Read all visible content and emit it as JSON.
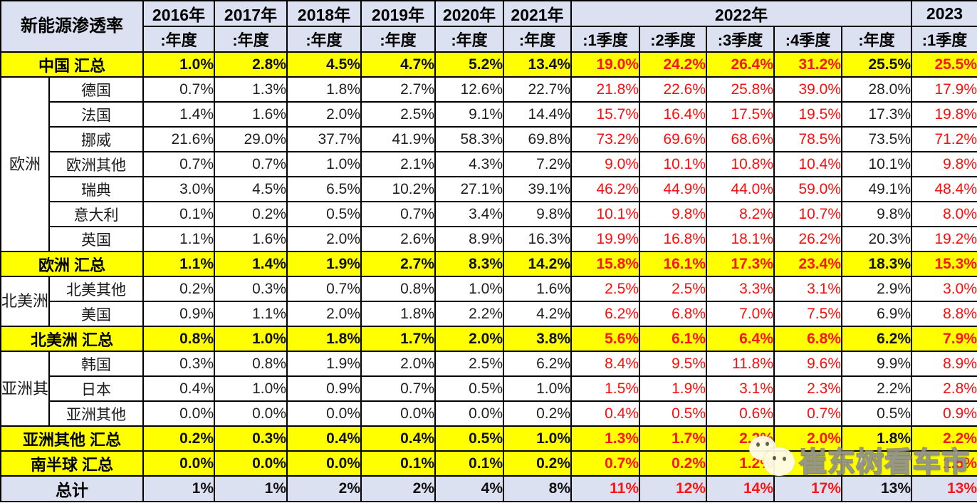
{
  "chart_data": {
    "type": "table",
    "title": "新能源渗透率",
    "year_headers": [
      {
        "label": "2016年",
        "span": 1
      },
      {
        "label": "2017年",
        "span": 1
      },
      {
        "label": "2018年",
        "span": 1
      },
      {
        "label": "2019年",
        "span": 1
      },
      {
        "label": "2020年",
        "span": 1
      },
      {
        "label": "2021年",
        "span": 1
      },
      {
        "label": "2022年",
        "span": 5
      },
      {
        "label": "2023",
        "span": 1
      }
    ],
    "period_headers": [
      ":年度",
      ":年度",
      ":年度",
      ":年度",
      ":年度",
      ":年度",
      ":1季度",
      ":2季度",
      ":3季度",
      ":4季度",
      ":年度",
      ":1季度"
    ],
    "red_columns": [
      6,
      7,
      8,
      9,
      11
    ],
    "sections": [
      {
        "type": "summary",
        "label": "中国 汇总",
        "values": [
          "1.0%",
          "2.8%",
          "4.5%",
          "4.7%",
          "5.2%",
          "13.4%",
          "19.0%",
          "24.2%",
          "26.4%",
          "31.2%",
          "25.5%",
          "25.5%"
        ]
      },
      {
        "type": "group",
        "group_label": "欧洲",
        "rows": [
          {
            "label": "德国",
            "values": [
              "0.7%",
              "1.3%",
              "1.8%",
              "2.7%",
              "12.6%",
              "22.7%",
              "21.8%",
              "22.6%",
              "25.8%",
              "39.0%",
              "28.0%",
              "17.9%"
            ]
          },
          {
            "label": "法国",
            "values": [
              "1.4%",
              "1.6%",
              "2.0%",
              "2.5%",
              "9.1%",
              "14.4%",
              "15.7%",
              "16.4%",
              "17.5%",
              "19.5%",
              "17.3%",
              "19.8%"
            ]
          },
          {
            "label": "挪威",
            "values": [
              "21.6%",
              "29.0%",
              "37.7%",
              "41.9%",
              "58.3%",
              "69.8%",
              "73.2%",
              "69.6%",
              "68.6%",
              "78.5%",
              "73.5%",
              "71.2%"
            ]
          },
          {
            "label": "欧洲其他",
            "values": [
              "0.7%",
              "0.7%",
              "1.0%",
              "2.1%",
              "4.3%",
              "7.2%",
              "9.0%",
              "10.1%",
              "10.8%",
              "10.4%",
              "10.1%",
              "9.8%"
            ]
          },
          {
            "label": "瑞典",
            "values": [
              "3.0%",
              "4.5%",
              "6.5%",
              "10.2%",
              "27.1%",
              "39.1%",
              "46.2%",
              "44.9%",
              "44.0%",
              "59.0%",
              "49.1%",
              "48.4%"
            ]
          },
          {
            "label": "意大利",
            "values": [
              "0.1%",
              "0.2%",
              "0.5%",
              "0.7%",
              "3.4%",
              "9.8%",
              "10.1%",
              "9.8%",
              "8.2%",
              "10.7%",
              "9.8%",
              "8.0%"
            ]
          },
          {
            "label": "英国",
            "values": [
              "1.1%",
              "1.6%",
              "2.0%",
              "2.6%",
              "8.9%",
              "16.3%",
              "19.9%",
              "16.8%",
              "18.1%",
              "26.2%",
              "20.3%",
              "19.2%"
            ]
          }
        ]
      },
      {
        "type": "summary",
        "label": "欧洲 汇总",
        "values": [
          "1.1%",
          "1.4%",
          "1.9%",
          "2.7%",
          "8.3%",
          "14.2%",
          "15.8%",
          "16.1%",
          "17.3%",
          "23.4%",
          "18.3%",
          "15.3%"
        ]
      },
      {
        "type": "group",
        "group_label": "北美洲",
        "rows": [
          {
            "label": "北美其他",
            "values": [
              "0.2%",
              "0.3%",
              "0.7%",
              "0.8%",
              "1.0%",
              "1.6%",
              "2.5%",
              "2.5%",
              "3.3%",
              "3.1%",
              "2.9%",
              "3.0%"
            ]
          },
          {
            "label": "美国",
            "values": [
              "0.9%",
              "1.1%",
              "2.0%",
              "1.8%",
              "2.2%",
              "4.2%",
              "6.2%",
              "6.8%",
              "7.0%",
              "7.5%",
              "6.9%",
              "8.8%"
            ]
          }
        ]
      },
      {
        "type": "summary",
        "label": "北美洲 汇总",
        "values": [
          "0.8%",
          "1.0%",
          "1.8%",
          "1.7%",
          "2.0%",
          "3.8%",
          "5.6%",
          "6.1%",
          "6.4%",
          "6.8%",
          "6.2%",
          "7.9%"
        ]
      },
      {
        "type": "group",
        "group_label": "亚洲其他",
        "rows": [
          {
            "label": "韩国",
            "values": [
              "0.3%",
              "0.8%",
              "1.9%",
              "2.0%",
              "2.5%",
              "6.2%",
              "8.4%",
              "9.5%",
              "11.8%",
              "9.6%",
              "9.9%",
              "8.9%"
            ]
          },
          {
            "label": "日本",
            "values": [
              "0.4%",
              "1.0%",
              "0.9%",
              "0.7%",
              "0.5%",
              "1.0%",
              "1.5%",
              "1.9%",
              "3.1%",
              "2.3%",
              "2.2%",
              "2.8%"
            ]
          },
          {
            "label": "亚洲其他",
            "values": [
              "0.0%",
              "0.0%",
              "0.0%",
              "0.0%",
              "0.0%",
              "0.2%",
              "0.4%",
              "0.5%",
              "0.6%",
              "0.7%",
              "0.5%",
              "0.9%"
            ]
          }
        ]
      },
      {
        "type": "summary",
        "label": "亚洲其他 汇总",
        "values": [
          "0.2%",
          "0.3%",
          "0.4%",
          "0.4%",
          "0.5%",
          "1.0%",
          "1.3%",
          "1.7%",
          "2.2%",
          "2.0%",
          "1.8%",
          "2.2%"
        ]
      },
      {
        "type": "summary",
        "label": "南半球 汇总",
        "values": [
          "0.0%",
          "0.0%",
          "0.0%",
          "0.1%",
          "0.1%",
          "0.2%",
          "0.7%",
          "0.2%",
          "1.2%",
          "",
          "",
          "1.5%"
        ]
      },
      {
        "type": "total",
        "label": "总计",
        "values": [
          "1%",
          "1%",
          "2%",
          "2%",
          "4%",
          "8%",
          "11%",
          "12%",
          "14%",
          "17%",
          "13%",
          "13%"
        ]
      }
    ],
    "colors": {
      "highlight_yellow": "#FFFF00",
      "header_bg": "#DCE1F1",
      "red_text": "#FD0D0D",
      "black_text": "#1F1F1F"
    }
  },
  "watermark": {
    "text": "崔东树看车市",
    "logo": "wechat-bubbles-icon"
  }
}
